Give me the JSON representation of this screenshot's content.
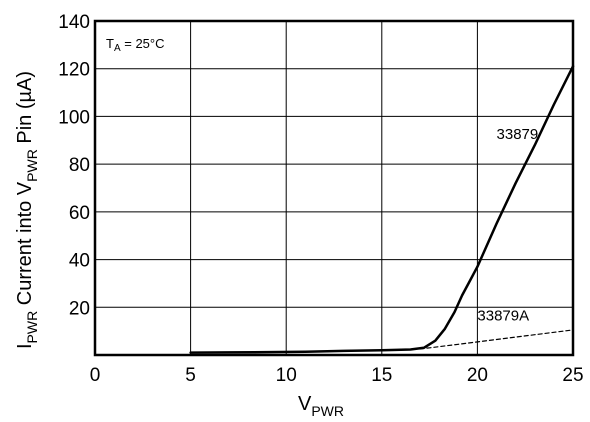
{
  "chart_data": {
    "type": "line",
    "xlabel": {
      "main": "V",
      "sub": "PWR"
    },
    "ylabel": {
      "part1": "I",
      "sub1": "PWR",
      "part2": " Current into V",
      "sub2": "PWR",
      "part3": " Pin (µA)"
    },
    "annotation": {
      "main": "T",
      "sub": "A",
      "rest": " = 25°C"
    },
    "xlim": [
      0,
      25
    ],
    "ylim": [
      0,
      140
    ],
    "xticks": [
      0,
      5,
      10,
      15,
      20,
      25
    ],
    "yticks": [
      20,
      40,
      60,
      80,
      100,
      120,
      140
    ],
    "grid": true,
    "series": [
      {
        "name": "33879",
        "style": "solid",
        "x": [
          5,
          7,
          9,
          11,
          13,
          15,
          16.5,
          17.2,
          17.8,
          18.3,
          18.8,
          19.2,
          19.6,
          20,
          21,
          22,
          23,
          24,
          25
        ],
        "y": [
          1,
          1.1,
          1.2,
          1.4,
          1.7,
          2.0,
          2.3,
          3,
          6,
          11,
          18,
          25,
          31,
          37,
          55,
          72,
          88,
          105,
          121
        ]
      },
      {
        "name": "33879A",
        "style": "dashed",
        "x": [
          17,
          19,
          21,
          23,
          25
        ],
        "y": [
          2.5,
          4.5,
          6.5,
          8.5,
          10.5
        ]
      }
    ]
  }
}
